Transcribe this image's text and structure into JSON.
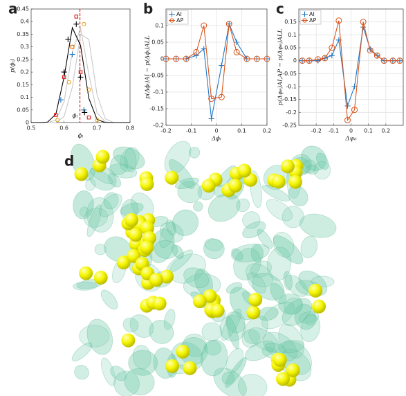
{
  "chart_data": [
    {
      "type": "line",
      "panel": "a",
      "xlabel": "ϕₗ",
      "ylabel": "p(ϕₗ)",
      "annotation": "ϕₗ",
      "xlim": [
        0.5,
        0.8
      ],
      "ylim": [
        0,
        0.45
      ],
      "xticks": [
        0.5,
        0.6,
        0.7,
        0.8
      ],
      "yticks": [
        0,
        0.05,
        0.1,
        0.15,
        0.2,
        0.25,
        0.3,
        0.35,
        0.4,
        0.45
      ],
      "grid": false,
      "vline": 0.648,
      "vline_color": "#d62728",
      "x": [
        0.5,
        0.525,
        0.55,
        0.575,
        0.6,
        0.625,
        0.65,
        0.675,
        0.7,
        0.725,
        0.75,
        0.775,
        0.8
      ],
      "series": [
        {
          "color": "#c8c8c8",
          "lines": true,
          "values": [
            0,
            0,
            0,
            0.009,
            0.082,
            0.28,
            0.375,
            0.19,
            0.038,
            0.003,
            0,
            0,
            0
          ]
        },
        {
          "color": "#c8c8c8",
          "lines": true,
          "values": [
            0,
            0,
            0,
            0,
            0.024,
            0.14,
            0.35,
            0.33,
            0.11,
            0.015,
            0,
            0,
            0
          ]
        },
        {
          "color": "#000000",
          "lines": true,
          "values": [
            0,
            0,
            0.002,
            0.033,
            0.18,
            0.376,
            0.305,
            0.096,
            0.012,
            0,
            0,
            0,
            0
          ]
        },
        {
          "color": "#1f77c4",
          "lines": false,
          "marker": "plus",
          "x": [
            0.59,
            0.625,
            0.66
          ],
          "values": [
            0.09,
            0.27,
            0.05
          ]
        },
        {
          "color": "#e0201b",
          "lines": false,
          "marker": "square",
          "x": [
            0.575,
            0.6,
            0.625,
            0.637,
            0.65,
            0.675
          ],
          "values": [
            0.03,
            0.18,
            0.3,
            0.42,
            0.2,
            0.02
          ]
        },
        {
          "color": "#e8a317",
          "lines": false,
          "marker": "circle",
          "x": [
            0.58,
            0.615,
            0.625,
            0.66,
            0.675,
            0.7
          ],
          "values": [
            0.01,
            0.16,
            0.3,
            0.39,
            0.13,
            0.01
          ]
        },
        {
          "color": "#000000",
          "lines": false,
          "marker": "plus",
          "x": [
            0.6,
            0.612,
            0.637,
            0.65,
            0.662
          ],
          "values": [
            0.2,
            0.33,
            0.39,
            0.18,
            0.04
          ]
        }
      ]
    },
    {
      "type": "line",
      "panel": "b",
      "xlabel": "Δϕₗ",
      "ylabel": "p(Δϕₗ)AI − p(Δϕₗ)ALL",
      "xlim": [
        -0.2,
        0.2
      ],
      "ylim": [
        -0.2,
        0.15
      ],
      "xticks": [
        -0.2,
        -0.1,
        0,
        0.1,
        0.2
      ],
      "yticks": [
        -0.2,
        -0.15,
        -0.1,
        -0.05,
        0,
        0.05,
        0.1
      ],
      "grid": true,
      "legend": "top-left",
      "x": [
        -0.2,
        -0.16,
        -0.12,
        -0.08,
        -0.05,
        -0.02,
        0.02,
        0.05,
        0.08,
        0.12,
        0.16,
        0.2
      ],
      "series": [
        {
          "name": "AI",
          "color": "#1f77c4",
          "lines": true,
          "marker": "plus",
          "values": [
            0,
            0,
            0,
            0.01,
            0.03,
            -0.18,
            -0.02,
            0.105,
            0.05,
            0,
            0,
            0
          ]
        },
        {
          "name": "AP",
          "color": "#d95319",
          "lines": true,
          "marker": "circle",
          "values": [
            0,
            0,
            0,
            0.02,
            0.1,
            -0.12,
            -0.115,
            0.105,
            0.02,
            0,
            0,
            0
          ]
        }
      ]
    },
    {
      "type": "line",
      "panel": "c",
      "xlabel": "Δψ₆",
      "ylabel": "p(Δψ₆)AI,AP − p(Δψ₆)ALL",
      "xlim": [
        -0.3,
        0.3
      ],
      "ylim": [
        -0.25,
        0.2
      ],
      "xticks": [
        -0.2,
        -0.1,
        0,
        0.1,
        0.2
      ],
      "yticks": [
        -0.25,
        -0.2,
        -0.15,
        -0.1,
        -0.05,
        0,
        0.05,
        0.1,
        0.15
      ],
      "grid": true,
      "legend": "top-left",
      "x": [
        -0.28,
        -0.24,
        -0.19,
        -0.15,
        -0.11,
        -0.07,
        -0.02,
        0.02,
        0.07,
        0.11,
        0.15,
        0.19,
        0.24,
        0.28
      ],
      "series": [
        {
          "name": "AI",
          "color": "#1f77c4",
          "lines": true,
          "marker": "plus",
          "values": [
            0,
            0,
            0,
            0.01,
            0.02,
            0.08,
            -0.175,
            -0.1,
            0.13,
            0.045,
            0.02,
            0,
            0,
            0
          ]
        },
        {
          "name": "AP",
          "color": "#d95319",
          "lines": true,
          "marker": "circle",
          "values": [
            0,
            0,
            0.005,
            0.01,
            0.05,
            0.155,
            -0.23,
            -0.19,
            0.15,
            0.04,
            0.02,
            0,
            0,
            0
          ]
        }
      ]
    }
  ],
  "image": {
    "panel": "d"
  }
}
